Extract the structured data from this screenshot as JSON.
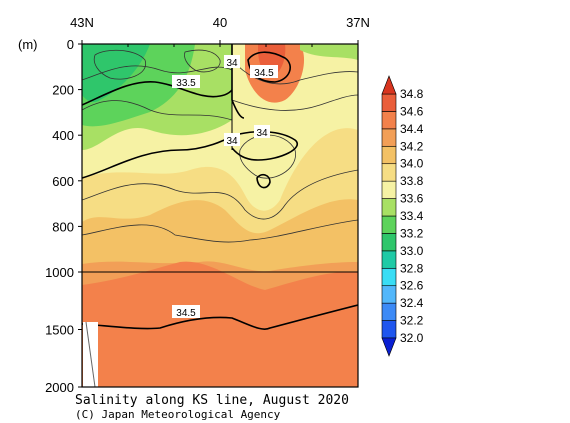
{
  "chart_data": {
    "type": "heatmap",
    "title": "Salinity along KS line, August 2020",
    "credit": "(C) Japan Meteorological Agency",
    "ylabel": "(m)",
    "x_ticks": [
      {
        "lat": 43,
        "label": "43N"
      },
      {
        "lat": 40,
        "label": "40"
      },
      {
        "lat": 37,
        "label": "37N"
      }
    ],
    "xlim": [
      43,
      37
    ],
    "y_ticks": [
      0,
      200,
      400,
      600,
      800,
      1000,
      1500,
      2000
    ],
    "ylim": [
      0,
      2000
    ],
    "y_scale_break": 1000,
    "colorbar": {
      "levels": [
        32.0,
        32.2,
        32.4,
        32.6,
        32.8,
        33.0,
        33.2,
        33.4,
        33.6,
        33.8,
        34.0,
        34.2,
        34.4,
        34.6,
        34.8
      ],
      "colors": [
        "#0a1fd2",
        "#1f56ee",
        "#3c8af6",
        "#52b7fb",
        "#39ddf5",
        "#1fcaa6",
        "#2fc66b",
        "#5dd35b",
        "#a8e064",
        "#f6f2a4",
        "#f6dd84",
        "#f3c165",
        "#f29f57",
        "#f3814b",
        "#ea5e3a",
        "#d8351f"
      ]
    },
    "contour_labels": [
      "33.5",
      "34",
      "34.5",
      "34",
      "34",
      "34.5"
    ]
  }
}
